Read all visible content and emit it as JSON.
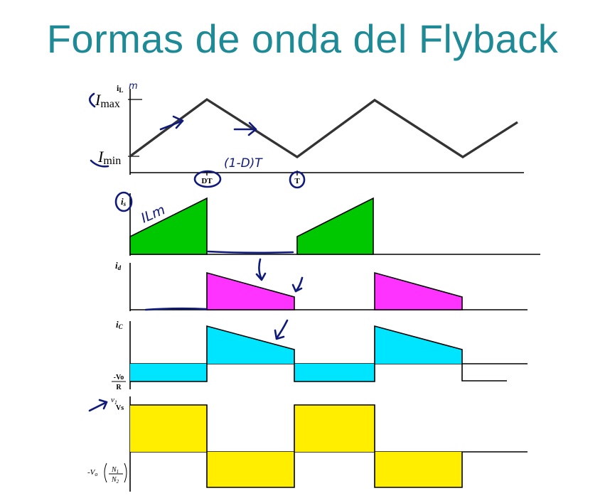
{
  "slide": {
    "title": "Formas de onda del Flyback"
  },
  "labels": {
    "il": "i",
    "il_sub": "L",
    "imax": "I",
    "imax_sub": "max",
    "imin": "I",
    "imin_sub": "min",
    "dt": "DT",
    "t": "T",
    "is": "i",
    "is_sub": "s",
    "id": "i",
    "id_sub": "d",
    "ic": "i",
    "ic_sub": "C",
    "neg_vo": "-Vo",
    "neg_vo_den": "R",
    "v1": "v",
    "v1_sub": "1",
    "vs": "Vs",
    "neg_vo_n": "-V",
    "neg_vo_n_sub": "o",
    "n1": "N",
    "n1_sub": "1",
    "n2": "N",
    "n2_sub": "2"
  },
  "annotations": {
    "il_m": "m",
    "one_minus_d_t": "(1-D)T",
    "ilm": "ILm"
  },
  "colors": {
    "title": "#1d8a96",
    "is_fill": "#00c800",
    "id_fill": "#ff33ff",
    "ic_fill": "#00e5ff",
    "v1_fill": "#ffee00",
    "ink": "#101a7a"
  }
}
